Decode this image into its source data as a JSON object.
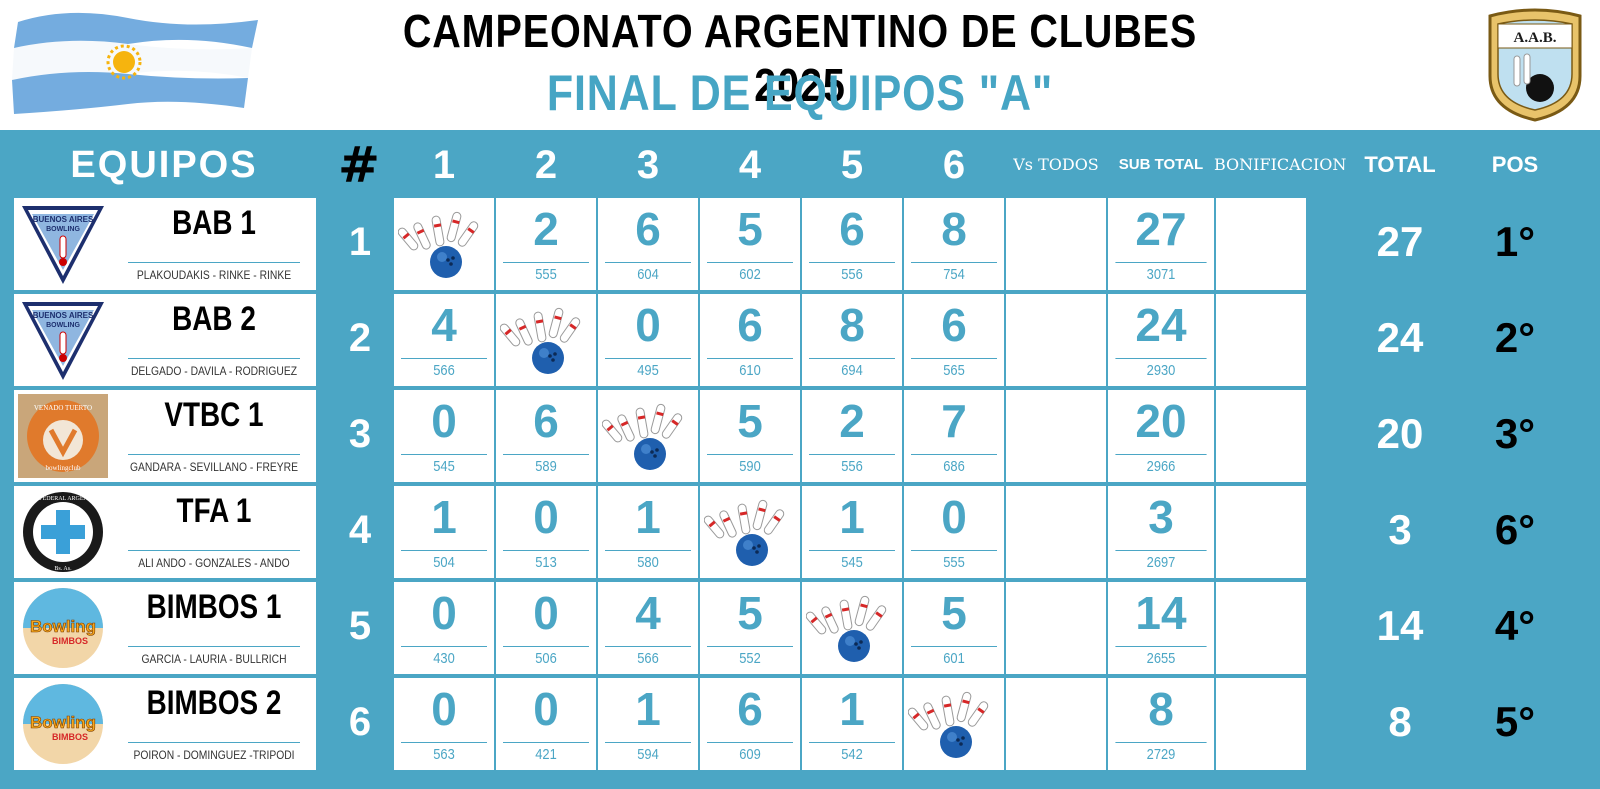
{
  "header": {
    "title": "CAMPEONATO ARGENTINO DE CLUBES 2025",
    "subtitle": "FINAL DE EQUIPOS \"A\"",
    "crest_text": "A.A.B.",
    "colors": {
      "accent": "#4ba6c5",
      "text": "#000000"
    }
  },
  "table_headers": {
    "equipos": "EQUIPOS",
    "hash": "#",
    "cols": [
      "1",
      "2",
      "3",
      "4",
      "5",
      "6"
    ],
    "vs_todos": "Vs TODOS",
    "sub_total": "SUB TOTAL",
    "bonificacion": "BONIFICACION",
    "total": "TOTAL",
    "pos": "POS"
  },
  "teams": [
    {
      "num": "1",
      "name": "BAB 1",
      "players": "PLAKOUDAKIS - RINKE - RINKE",
      "logo": "buenos-aires-bowling-logo",
      "logo_text": [
        "BUENOS AIRES",
        "BOWLING"
      ],
      "results": [
        null,
        {
          "pts": "2",
          "pins": "555"
        },
        {
          "pts": "6",
          "pins": "604"
        },
        {
          "pts": "5",
          "pins": "602"
        },
        {
          "pts": "6",
          "pins": "556"
        },
        {
          "pts": "8",
          "pins": "754"
        }
      ],
      "sub_total": "27",
      "sub_pins": "3071",
      "total": "27",
      "pos": "1°"
    },
    {
      "num": "2",
      "name": "BAB 2",
      "players": "DELGADO - DAVILA - RODRIGUEZ",
      "logo": "buenos-aires-bowling-logo",
      "logo_text": [
        "BUENOS AIRES",
        "BOWLING"
      ],
      "results": [
        {
          "pts": "4",
          "pins": "566"
        },
        null,
        {
          "pts": "0",
          "pins": "495"
        },
        {
          "pts": "6",
          "pins": "610"
        },
        {
          "pts": "8",
          "pins": "694"
        },
        {
          "pts": "6",
          "pins": "565"
        }
      ],
      "sub_total": "24",
      "sub_pins": "2930",
      "total": "24",
      "pos": "2°"
    },
    {
      "num": "3",
      "name": "VTBC 1",
      "players": "GANDARA - SEVILLANO - FREYRE",
      "logo": "venado-tuerto-logo",
      "logo_text": [
        "VENADO TUERTO",
        "bowlingclub"
      ],
      "results": [
        {
          "pts": "0",
          "pins": "545"
        },
        {
          "pts": "6",
          "pins": "589"
        },
        null,
        {
          "pts": "5",
          "pins": "590"
        },
        {
          "pts": "2",
          "pins": "556"
        },
        {
          "pts": "7",
          "pins": "686"
        }
      ],
      "sub_total": "20",
      "sub_pins": "2966",
      "total": "20",
      "pos": "3°"
    },
    {
      "num": "4",
      "name": "TFA 1",
      "players": "ALI ANDO - GONZALES - ANDO",
      "logo": "tiro-federal-logo",
      "logo_text": [
        "TIRO FEDERAL ARGENTINO",
        "Bs. As."
      ],
      "results": [
        {
          "pts": "1",
          "pins": "504"
        },
        {
          "pts": "0",
          "pins": "513"
        },
        {
          "pts": "1",
          "pins": "580"
        },
        null,
        {
          "pts": "1",
          "pins": "545"
        },
        {
          "pts": "0",
          "pins": "555"
        }
      ],
      "sub_total": "3",
      "sub_pins": "2697",
      "total": "3",
      "pos": "6°"
    },
    {
      "num": "5",
      "name": "BIMBOS 1",
      "players": "GARCIA - LAURIA - BULLRICH",
      "logo": "bowling-bimbos-logo",
      "logo_text": [
        "Bowling",
        "BIMBOS"
      ],
      "results": [
        {
          "pts": "0",
          "pins": "430"
        },
        {
          "pts": "0",
          "pins": "506"
        },
        {
          "pts": "4",
          "pins": "566"
        },
        {
          "pts": "5",
          "pins": "552"
        },
        null,
        {
          "pts": "5",
          "pins": "601"
        }
      ],
      "sub_total": "14",
      "sub_pins": "2655",
      "total": "14",
      "pos": "4°"
    },
    {
      "num": "6",
      "name": "BIMBOS 2",
      "players": "POIRON - DOMINGUEZ -TRIPODI",
      "logo": "bowling-bimbos-logo",
      "logo_text": [
        "Bowling",
        "BIMBOS"
      ],
      "results": [
        {
          "pts": "0",
          "pins": "563"
        },
        {
          "pts": "0",
          "pins": "421"
        },
        {
          "pts": "1",
          "pins": "594"
        },
        {
          "pts": "6",
          "pins": "609"
        },
        {
          "pts": "1",
          "pins": "542"
        },
        null
      ],
      "sub_total": "8",
      "sub_pins": "2729",
      "total": "8",
      "pos": "5°"
    }
  ]
}
